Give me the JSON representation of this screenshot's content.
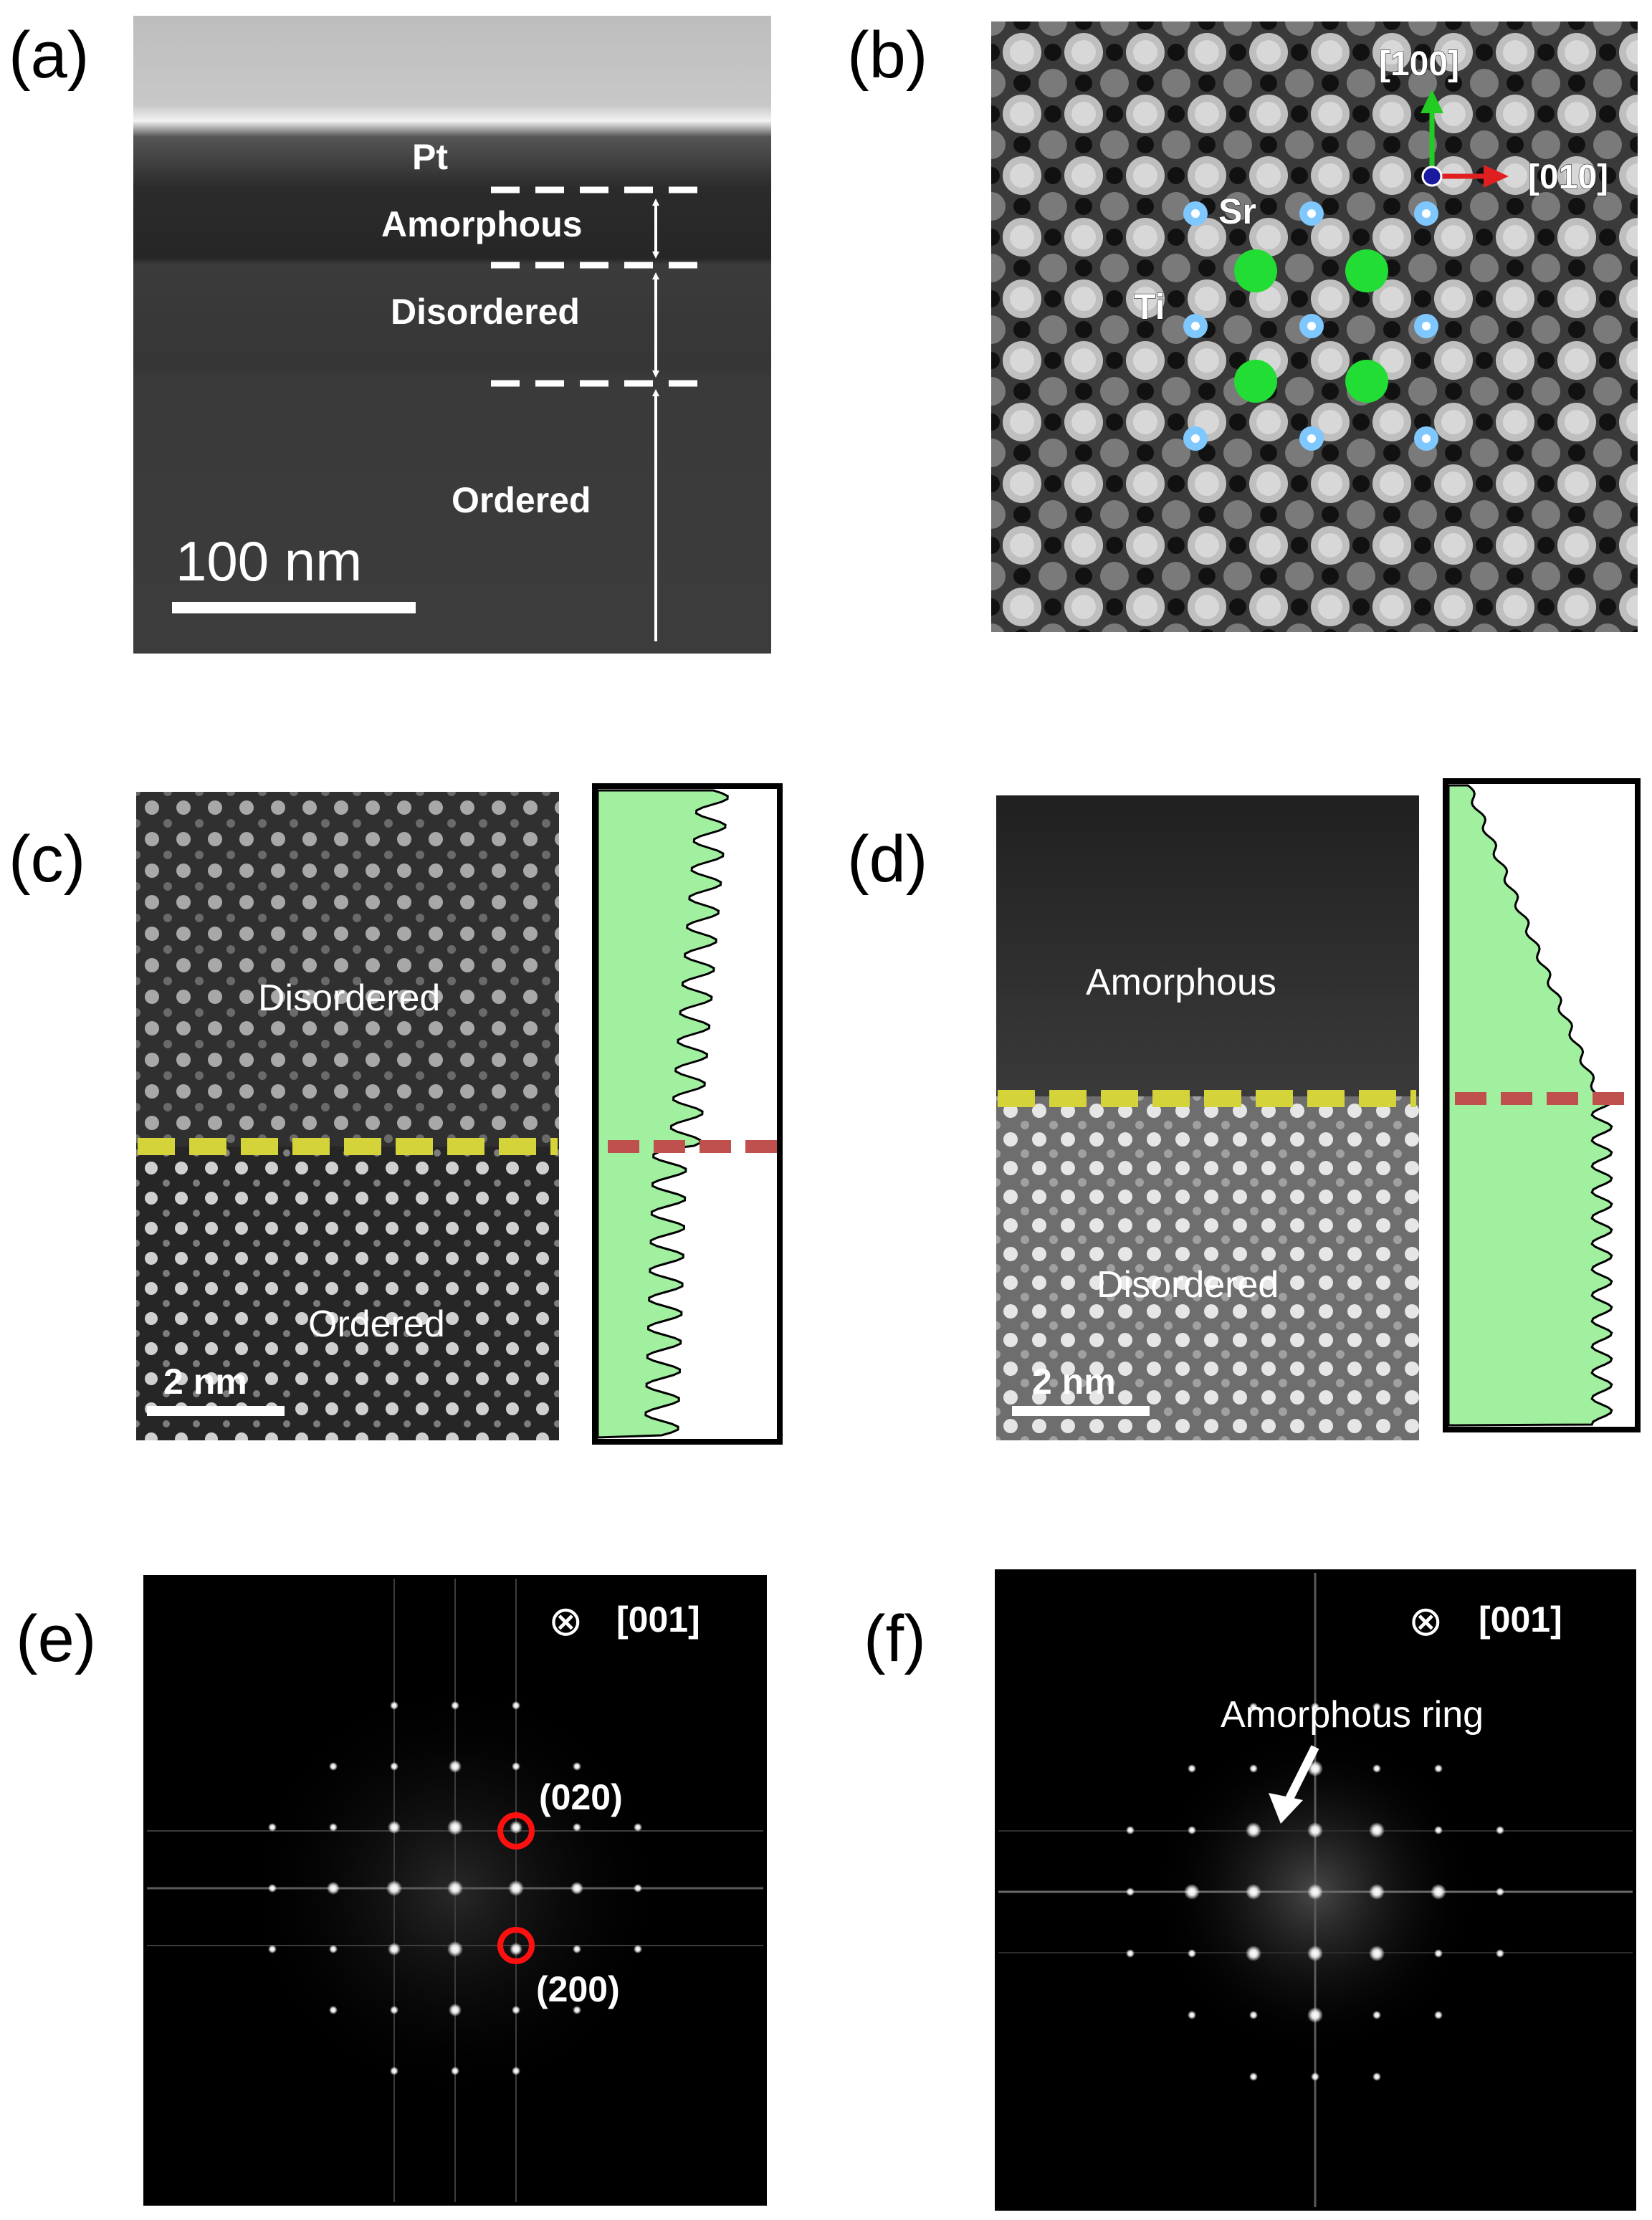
{
  "panels": {
    "a": {
      "label": "(a)",
      "layers": {
        "pt": "Pt",
        "amorphous": "Amorphous",
        "disordered": "Disordered",
        "ordered": "Ordered"
      },
      "scale_bar": "100 nm"
    },
    "b": {
      "label": "(b)",
      "axes": {
        "vertical": "[100]",
        "horizontal": "[010]"
      },
      "atoms": {
        "sr": "Sr",
        "ti": "Ti"
      },
      "colors": {
        "sr": "#22dd33",
        "ti": "#7ec8ff",
        "axis_up": "#22cc22",
        "axis_right": "#e02020",
        "axis_origin": "#1a1aa0"
      }
    },
    "c": {
      "label": "(c)",
      "regions": {
        "top": "Disordered",
        "bottom": "Ordered"
      },
      "scale_bar": "2 nm"
    },
    "d": {
      "label": "(d)",
      "regions": {
        "top": "Amorphous",
        "bottom": "Disordered"
      },
      "scale_bar": "2 nm"
    },
    "e": {
      "label": "(e)",
      "zone_axis_symbol": "⊗",
      "zone_axis": "[001]",
      "spots": {
        "spot_a": "(020)",
        "spot_b": "(200)"
      }
    },
    "f": {
      "label": "(f)",
      "zone_axis_symbol": "⊗",
      "zone_axis": "[001]",
      "annotation": "Amorphous ring"
    }
  },
  "colors": {
    "profile_fill": "#a0f0a0",
    "interface_dash_image": "#d4d43a",
    "interface_dash_profile": "#c0504d",
    "fft_circle": "#ff1010"
  }
}
